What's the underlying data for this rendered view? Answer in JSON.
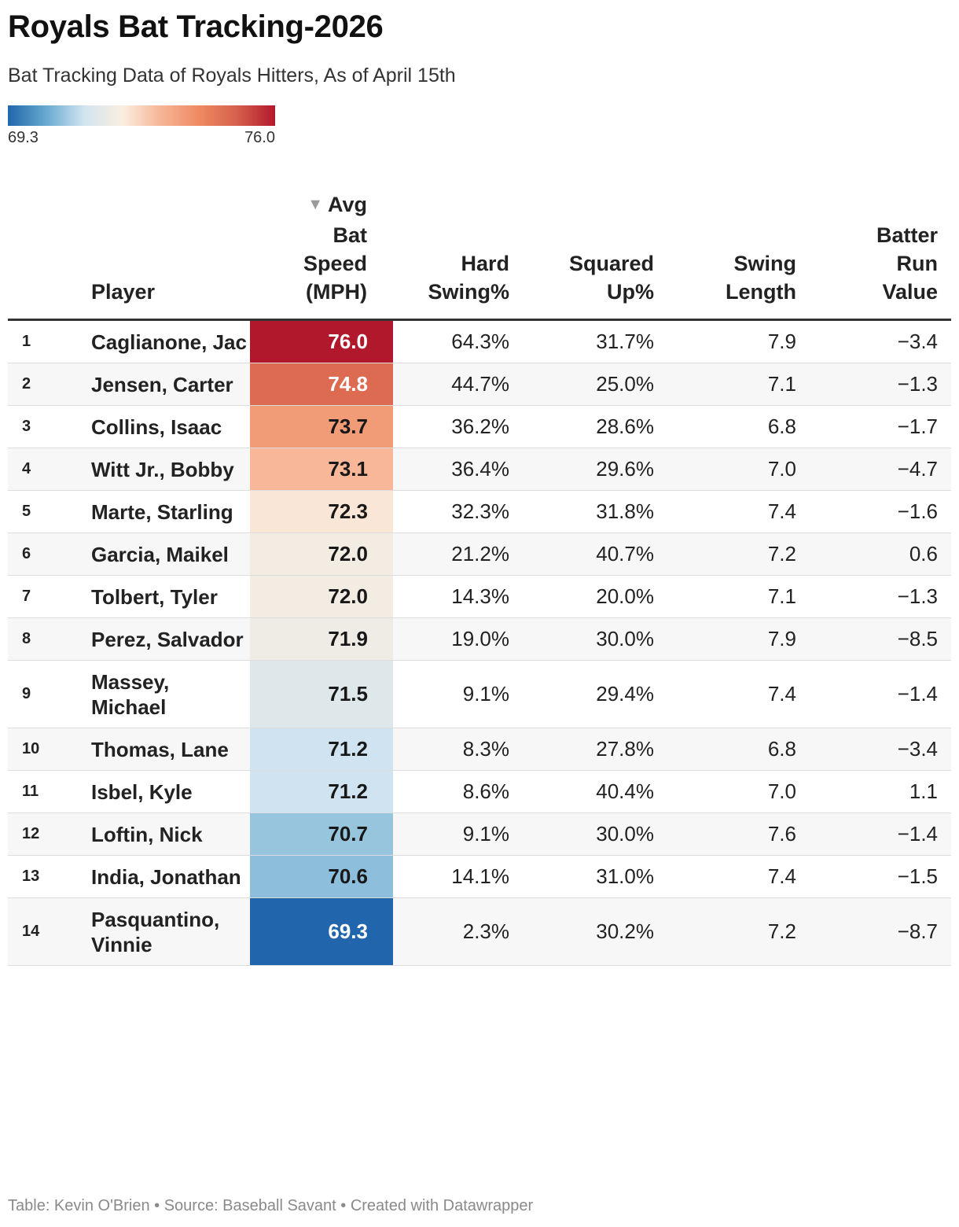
{
  "title": "Royals Bat Tracking-2026",
  "subtitle": "Bat Tracking Data of Royals Hitters, As of April 15th",
  "legend": {
    "min_label": "69.3",
    "max_label": "76.0"
  },
  "colors": {
    "scale_low": "#2166ac",
    "scale_mid": "#f7f7f7",
    "scale_high": "#b2182b",
    "scale_stops": [
      "#2166ac",
      "#67a9cf",
      "#d1e5f0",
      "#fbeee0",
      "#f7b596",
      "#ef8a62",
      "#d6604d",
      "#b2182b"
    ],
    "text_dark": "#181818",
    "text_light": "#ffffff"
  },
  "headers": {
    "player": "Player",
    "avg_bat_speed": [
      "Avg",
      "Bat",
      "Speed",
      "(MPH)"
    ],
    "hard_swing": [
      "Hard",
      "Swing%"
    ],
    "squared_up": [
      "Squared",
      "Up%"
    ],
    "swing_length": [
      "Swing",
      "Length"
    ],
    "batter_run_value": [
      "Batter",
      "Run",
      "Value"
    ]
  },
  "sort_indicator": "▼",
  "chart_data": {
    "type": "table",
    "title": "Royals Bat Tracking-2026",
    "subtitle": "Bat Tracking Data of Royals Hitters, As of April 15th",
    "columns": [
      "",
      "Player",
      "Avg Bat Speed (MPH)",
      "Hard Swing%",
      "Squared Up%",
      "Swing Length",
      "Batter Run Value"
    ],
    "color_scale": {
      "column": "Avg Bat Speed (MPH)",
      "min": 69.3,
      "max": 76.0
    },
    "rows": [
      {
        "rank": "1",
        "player": "Caglianone, Jac",
        "speed": "76.0",
        "hard": "64.3%",
        "squared": "31.7%",
        "length": "7.9",
        "rv": "−3.4"
      },
      {
        "rank": "2",
        "player": "Jensen, Carter",
        "speed": "74.8",
        "hard": "44.7%",
        "squared": "25.0%",
        "length": "7.1",
        "rv": "−1.3"
      },
      {
        "rank": "3",
        "player": "Collins, Isaac",
        "speed": "73.7",
        "hard": "36.2%",
        "squared": "28.6%",
        "length": "6.8",
        "rv": "−1.7"
      },
      {
        "rank": "4",
        "player": "Witt Jr., Bobby",
        "speed": "73.1",
        "hard": "36.4%",
        "squared": "29.6%",
        "length": "7.0",
        "rv": "−4.7"
      },
      {
        "rank": "5",
        "player": "Marte, Starling",
        "speed": "72.3",
        "hard": "32.3%",
        "squared": "31.8%",
        "length": "7.4",
        "rv": "−1.6"
      },
      {
        "rank": "6",
        "player": "Garcia, Maikel",
        "speed": "72.0",
        "hard": "21.2%",
        "squared": "40.7%",
        "length": "7.2",
        "rv": "0.6"
      },
      {
        "rank": "7",
        "player": "Tolbert, Tyler",
        "speed": "72.0",
        "hard": "14.3%",
        "squared": "20.0%",
        "length": "7.1",
        "rv": "−1.3"
      },
      {
        "rank": "8",
        "player": "Perez, Salvador",
        "speed": "71.9",
        "hard": "19.0%",
        "squared": "30.0%",
        "length": "7.9",
        "rv": "−8.5"
      },
      {
        "rank": "9",
        "player": "Massey, Michael",
        "speed": "71.5",
        "hard": "9.1%",
        "squared": "29.4%",
        "length": "7.4",
        "rv": "−1.4"
      },
      {
        "rank": "10",
        "player": "Thomas, Lane",
        "speed": "71.2",
        "hard": "8.3%",
        "squared": "27.8%",
        "length": "6.8",
        "rv": "−3.4"
      },
      {
        "rank": "11",
        "player": "Isbel, Kyle",
        "speed": "71.2",
        "hard": "8.6%",
        "squared": "40.4%",
        "length": "7.0",
        "rv": "1.1"
      },
      {
        "rank": "12",
        "player": "Loftin, Nick",
        "speed": "70.7",
        "hard": "9.1%",
        "squared": "30.0%",
        "length": "7.6",
        "rv": "−1.4"
      },
      {
        "rank": "13",
        "player": "India, Jonathan",
        "speed": "70.6",
        "hard": "14.1%",
        "squared": "31.0%",
        "length": "7.4",
        "rv": "−1.5"
      },
      {
        "rank": "14",
        "player": "Pasquantino, Vinnie",
        "speed": "69.3",
        "hard": "2.3%",
        "squared": "30.2%",
        "length": "7.2",
        "rv": "−8.7"
      }
    ]
  },
  "footer": "Table: Kevin O'Brien • Source: Baseball Savant • Created with Datawrapper"
}
